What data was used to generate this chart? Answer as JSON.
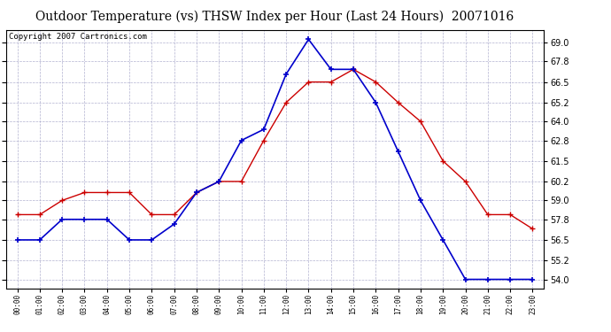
{
  "title": "Outdoor Temperature (vs) THSW Index per Hour (Last 24 Hours)  20071016",
  "copyright": "Copyright 2007 Cartronics.com",
  "hours": [
    "00:00",
    "01:00",
    "02:00",
    "03:00",
    "04:00",
    "05:00",
    "06:00",
    "07:00",
    "08:00",
    "09:00",
    "10:00",
    "11:00",
    "12:00",
    "13:00",
    "14:00",
    "15:00",
    "16:00",
    "17:00",
    "18:00",
    "19:00",
    "20:00",
    "21:00",
    "22:00",
    "23:00"
  ],
  "temp_red": [
    58.1,
    58.1,
    59.0,
    59.5,
    59.5,
    59.5,
    58.1,
    58.1,
    59.5,
    60.2,
    60.2,
    62.8,
    65.2,
    66.5,
    66.5,
    67.3,
    66.5,
    65.2,
    64.0,
    61.5,
    60.2,
    58.1,
    58.1,
    57.2
  ],
  "thsw_blue": [
    56.5,
    56.5,
    57.8,
    57.8,
    57.8,
    56.5,
    56.5,
    57.5,
    59.5,
    60.2,
    62.8,
    63.5,
    67.0,
    69.2,
    67.3,
    67.3,
    65.2,
    62.1,
    59.0,
    56.5,
    54.0,
    54.0,
    54.0,
    54.0
  ],
  "ylim_min": 53.4,
  "ylim_max": 69.8,
  "yticks": [
    54.0,
    55.2,
    56.5,
    57.8,
    59.0,
    60.2,
    61.5,
    62.8,
    64.0,
    65.2,
    66.5,
    67.8,
    69.0
  ],
  "bg_color": "#ffffff",
  "grid_color": "#aaaacc",
  "red_color": "#cc0000",
  "blue_color": "#0000cc",
  "title_fontsize": 10,
  "copyright_fontsize": 6.5
}
